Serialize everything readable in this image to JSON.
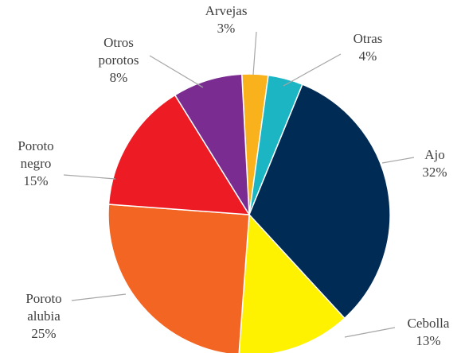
{
  "chart_data": {
    "type": "pie",
    "categories": [
      "Arvejas",
      "Otras",
      "Ajo",
      "Cebolla",
      "Poroto alubia",
      "Poroto negro",
      "Otros porotos"
    ],
    "values": [
      3,
      4,
      32,
      13,
      25,
      15,
      8
    ],
    "value_labels": [
      "3%",
      "4%",
      "32%",
      "13%",
      "25%",
      "15%",
      "8%"
    ],
    "colors": [
      "#f9b21c",
      "#1cb5c4",
      "#002b54",
      "#fff200",
      "#f26522",
      "#ed1c24",
      "#7b2c91"
    ]
  }
}
